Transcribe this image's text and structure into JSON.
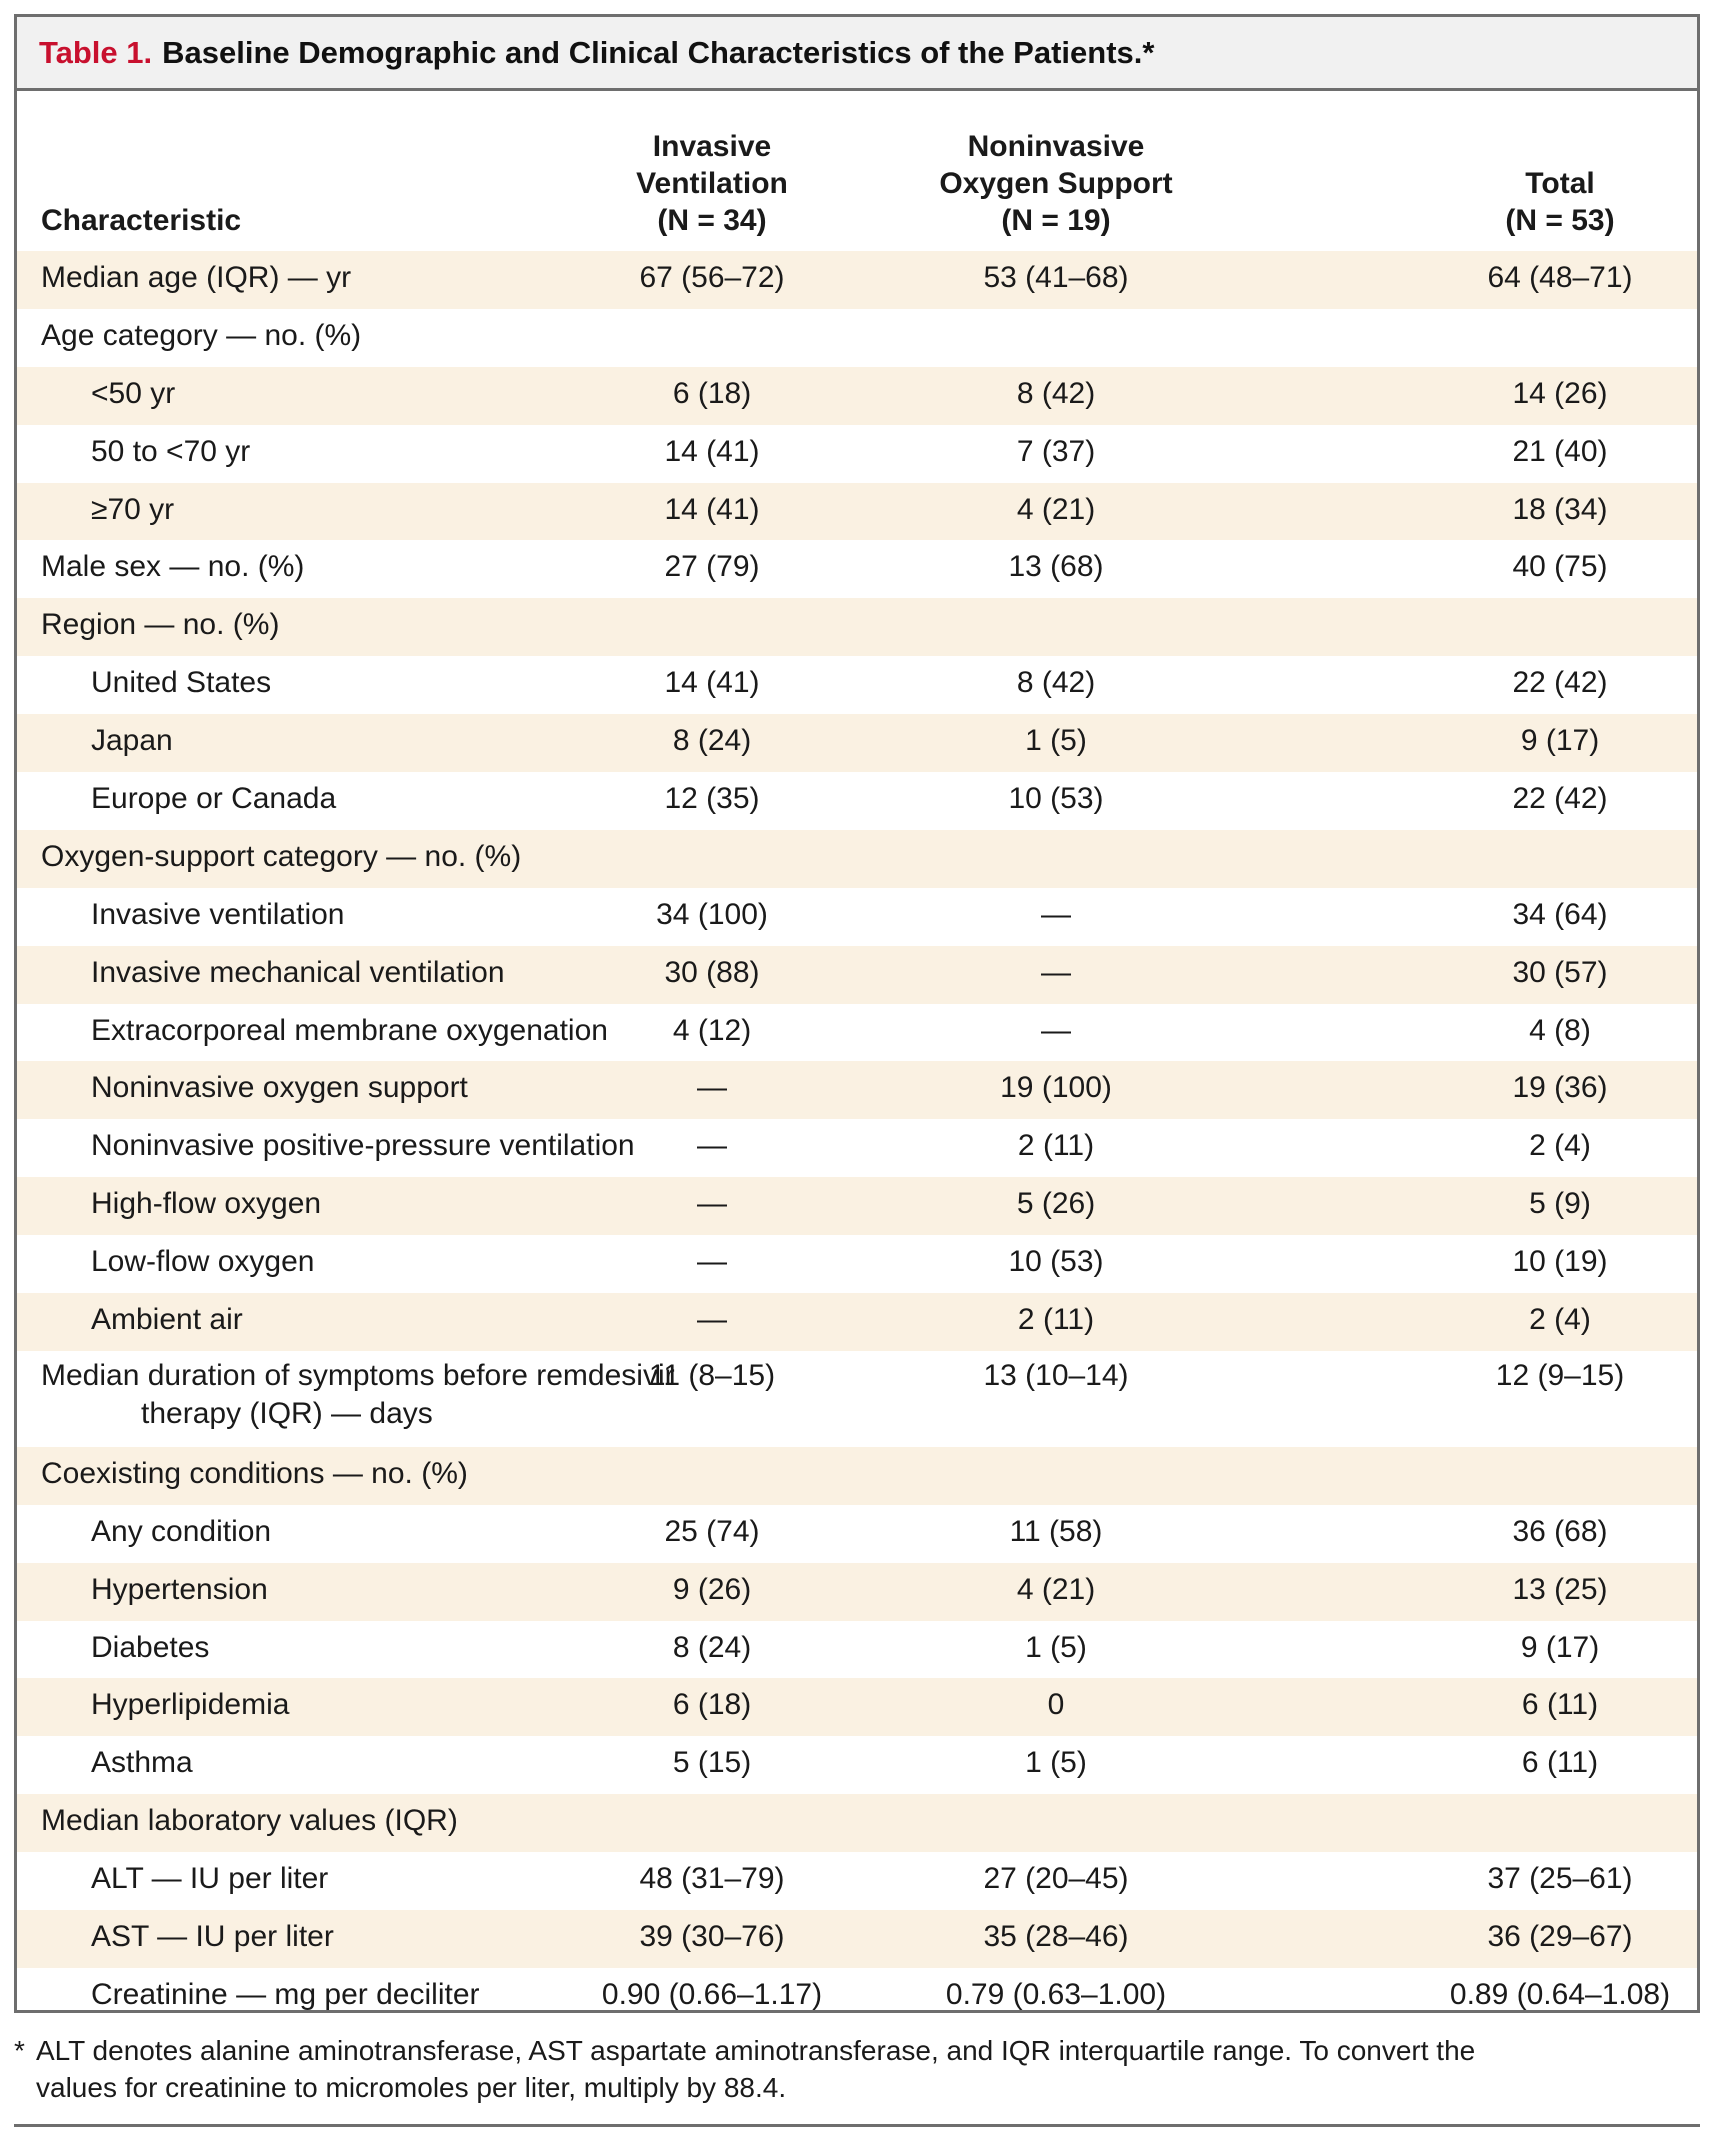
{
  "title": {
    "label": "Table 1.",
    "text": "Baseline Demographic and Clinical Characteristics of the Patients.*"
  },
  "columns": [
    "Characteristic",
    "Invasive\nVentilation\n(N = 34)",
    "Noninvasive\nOxygen Support\n(N = 19)",
    "Total\n(N = 53)"
  ],
  "rows": [
    {
      "label": "Median age (IQR) — yr",
      "indent": false,
      "v1": "67 (56–72)",
      "v2": "53 (41–68)",
      "v3": "64 (48–71)"
    },
    {
      "label": "Age category — no. (%)",
      "indent": false,
      "v1": "",
      "v2": "",
      "v3": ""
    },
    {
      "label": "<50 yr",
      "indent": true,
      "v1": "6 (18)",
      "v2": "8 (42)",
      "v3": "14 (26)"
    },
    {
      "label": "50 to <70 yr",
      "indent": true,
      "v1": "14 (41)",
      "v2": "7 (37)",
      "v3": "21 (40)"
    },
    {
      "label": "≥70 yr",
      "indent": true,
      "v1": "14 (41)",
      "v2": "4 (21)",
      "v3": "18 (34)"
    },
    {
      "label": "Male sex — no. (%)",
      "indent": false,
      "v1": "27 (79)",
      "v2": "13 (68)",
      "v3": "40 (75)"
    },
    {
      "label": "Region — no. (%)",
      "indent": false,
      "v1": "",
      "v2": "",
      "v3": ""
    },
    {
      "label": "United States",
      "indent": true,
      "v1": "14 (41)",
      "v2": "8 (42)",
      "v3": "22 (42)"
    },
    {
      "label": "Japan",
      "indent": true,
      "v1": "8 (24)",
      "v2": "1 (5)",
      "v3": "9 (17)"
    },
    {
      "label": "Europe or Canada",
      "indent": true,
      "v1": "12 (35)",
      "v2": "10 (53)",
      "v3": "22 (42)"
    },
    {
      "label": "Oxygen-support category — no. (%)",
      "indent": false,
      "v1": "",
      "v2": "",
      "v3": ""
    },
    {
      "label": "Invasive ventilation",
      "indent": true,
      "v1": "34 (100)",
      "v2": "—",
      "v3": "34 (64)"
    },
    {
      "label": "Invasive mechanical ventilation",
      "indent": true,
      "v1": "30 (88)",
      "v2": "—",
      "v3": "30 (57)"
    },
    {
      "label": "Extracorporeal membrane oxygenation",
      "indent": true,
      "v1": "4 (12)",
      "v2": "—",
      "v3": "4 (8)"
    },
    {
      "label": "Noninvasive oxygen support",
      "indent": true,
      "v1": "—",
      "v2": "19 (100)",
      "v3": "19 (36)"
    },
    {
      "label": "Noninvasive positive-pressure ventilation",
      "indent": true,
      "v1": "—",
      "v2": "2 (11)",
      "v3": "2 (4)"
    },
    {
      "label": "High-flow oxygen",
      "indent": true,
      "v1": "—",
      "v2": "5 (26)",
      "v3": "5 (9)"
    },
    {
      "label": "Low-flow oxygen",
      "indent": true,
      "v1": "—",
      "v2": "10 (53)",
      "v3": "10 (19)"
    },
    {
      "label": "Ambient air",
      "indent": true,
      "v1": "—",
      "v2": "2 (11)",
      "v3": "2 (4)"
    },
    {
      "label": "Median duration of symptoms before remdesivir",
      "label2": "therapy (IQR) — days",
      "indent": false,
      "v1": "11 (8–15)",
      "v2": "13 (10–14)",
      "v3": "12 (9–15)"
    },
    {
      "label": "Coexisting conditions — no. (%)",
      "indent": false,
      "v1": "",
      "v2": "",
      "v3": ""
    },
    {
      "label": "Any condition",
      "indent": true,
      "v1": "25 (74)",
      "v2": "11 (58)",
      "v3": "36 (68)"
    },
    {
      "label": "Hypertension",
      "indent": true,
      "v1": "9 (26)",
      "v2": "4 (21)",
      "v3": "13 (25)"
    },
    {
      "label": "Diabetes",
      "indent": true,
      "v1": "8 (24)",
      "v2": "1 (5)",
      "v3": "9 (17)"
    },
    {
      "label": "Hyperlipidemia",
      "indent": true,
      "v1": "6 (18)",
      "v2": "0",
      "v3": "6 (11)"
    },
    {
      "label": "Asthma",
      "indent": true,
      "v1": "5 (15)",
      "v2": "1 (5)",
      "v3": "6 (11)"
    },
    {
      "label": "Median laboratory values (IQR)",
      "indent": false,
      "v1": "",
      "v2": "",
      "v3": ""
    },
    {
      "label": "ALT — IU per liter",
      "indent": true,
      "v1": "48 (31–79)",
      "v2": "27 (20–45)",
      "v3": "37 (25–61)"
    },
    {
      "label": "AST — IU per liter",
      "indent": true,
      "v1": "39 (30–76)",
      "v2": "35 (28–46)",
      "v3": "36 (29–67)"
    },
    {
      "label": "Creatinine — mg per deciliter",
      "indent": true,
      "v1": "0.90 (0.66–1.17)",
      "v2": "0.79 (0.63–1.00)",
      "v3": "0.89 (0.64–1.08)"
    }
  ],
  "footnote": {
    "mark": "*",
    "line1": "ALT denotes alanine aminotransferase, AST aspartate aminotransferase, and IQR interquartile range. To convert the",
    "line2": "values for creatinine to micromoles per liter, multiply by 88.4."
  }
}
